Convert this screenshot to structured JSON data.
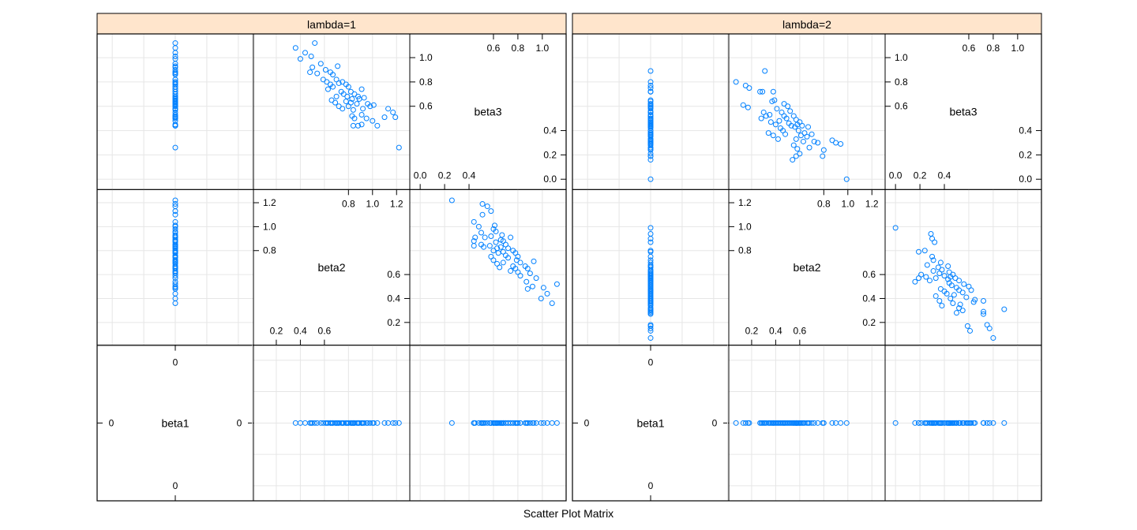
{
  "chart_data": {
    "type": "scatter",
    "title": "Scatter Plot Matrix",
    "variables": [
      "beta1",
      "beta2",
      "beta3"
    ],
    "grid": true,
    "point_color": "#0080ff",
    "strip_color": "#ffe5cc",
    "axes": {
      "beta1": {
        "range": [
          -1.24,
          1.24
        ],
        "tick_labels": [
          "0"
        ]
      },
      "beta2": {
        "range": [
          0.01,
          1.31
        ],
        "ticks_low": [
          "0.2",
          "0.4",
          "0.6"
        ],
        "ticks_high": [
          "0.8",
          "1.0",
          "1.2"
        ]
      },
      "beta3": {
        "range": [
          -0.085,
          1.195
        ],
        "ticks_low": [
          "0.0",
          "0.2",
          "0.4"
        ],
        "ticks_high": [
          "0.6",
          "0.8",
          "1.0"
        ]
      }
    },
    "panels": [
      {
        "strip": "lambda=1",
        "beta1": 0,
        "columns": [
          "beta2",
          "beta3"
        ],
        "points": [
          [
            0.36,
            1.08
          ],
          [
            0.44,
            1.04
          ],
          [
            0.4,
            0.99
          ],
          [
            0.52,
            1.12
          ],
          [
            0.49,
            1.01
          ],
          [
            0.57,
            0.95
          ],
          [
            0.48,
            0.88
          ],
          [
            0.54,
            0.87
          ],
          [
            0.5,
            0.92
          ],
          [
            0.61,
            0.9
          ],
          [
            0.65,
            0.88
          ],
          [
            0.67,
            0.86
          ],
          [
            0.71,
            0.93
          ],
          [
            0.59,
            0.82
          ],
          [
            0.62,
            0.8
          ],
          [
            0.65,
            0.78
          ],
          [
            0.63,
            0.74
          ],
          [
            0.67,
            0.76
          ],
          [
            0.7,
            0.82
          ],
          [
            0.72,
            0.79
          ],
          [
            0.75,
            0.8
          ],
          [
            0.78,
            0.78
          ],
          [
            0.8,
            0.76
          ],
          [
            0.74,
            0.72
          ],
          [
            0.76,
            0.7
          ],
          [
            0.79,
            0.68
          ],
          [
            0.83,
            0.66
          ],
          [
            0.85,
            0.7
          ],
          [
            0.82,
            0.63
          ],
          [
            0.87,
            0.62
          ],
          [
            0.7,
            0.68
          ],
          [
            0.66,
            0.65
          ],
          [
            0.69,
            0.63
          ],
          [
            0.72,
            0.6
          ],
          [
            0.75,
            0.58
          ],
          [
            0.8,
            0.6
          ],
          [
            0.84,
            0.57
          ],
          [
            0.88,
            0.68
          ],
          [
            0.91,
            0.74
          ],
          [
            0.89,
            0.66
          ],
          [
            0.93,
            0.67
          ],
          [
            0.96,
            0.62
          ],
          [
            0.98,
            0.6
          ],
          [
            1.01,
            0.61
          ],
          [
            0.92,
            0.58
          ],
          [
            0.83,
            0.52
          ],
          [
            0.85,
            0.5
          ],
          [
            0.91,
            0.53
          ],
          [
            0.95,
            0.5
          ],
          [
            0.84,
            0.44
          ],
          [
            0.88,
            0.44
          ],
          [
            0.91,
            0.45
          ],
          [
            1.0,
            0.48
          ],
          [
            1.04,
            0.44
          ],
          [
            1.1,
            0.51
          ],
          [
            1.13,
            0.58
          ],
          [
            1.17,
            0.55
          ],
          [
            1.19,
            0.51
          ],
          [
            0.78,
            0.64
          ],
          [
            0.82,
            0.72
          ],
          [
            1.22,
            0.26
          ]
        ]
      },
      {
        "strip": "lambda=2",
        "beta1": 0,
        "columns": [
          "beta2",
          "beta3"
        ],
        "points": [
          [
            0.07,
            0.8
          ],
          [
            0.15,
            0.77
          ],
          [
            0.18,
            0.75
          ],
          [
            0.13,
            0.61
          ],
          [
            0.17,
            0.59
          ],
          [
            0.31,
            0.89
          ],
          [
            0.27,
            0.72
          ],
          [
            0.29,
            0.72
          ],
          [
            0.38,
            0.72
          ],
          [
            0.3,
            0.55
          ],
          [
            0.32,
            0.52
          ],
          [
            0.28,
            0.5
          ],
          [
            0.35,
            0.53
          ],
          [
            0.37,
            0.64
          ],
          [
            0.39,
            0.65
          ],
          [
            0.41,
            0.58
          ],
          [
            0.36,
            0.47
          ],
          [
            0.4,
            0.45
          ],
          [
            0.43,
            0.48
          ],
          [
            0.45,
            0.55
          ],
          [
            0.47,
            0.52
          ],
          [
            0.49,
            0.5
          ],
          [
            0.51,
            0.46
          ],
          [
            0.44,
            0.42
          ],
          [
            0.46,
            0.4
          ],
          [
            0.48,
            0.37
          ],
          [
            0.34,
            0.38
          ],
          [
            0.38,
            0.36
          ],
          [
            0.42,
            0.33
          ],
          [
            0.52,
            0.56
          ],
          [
            0.55,
            0.52
          ],
          [
            0.57,
            0.49
          ],
          [
            0.53,
            0.44
          ],
          [
            0.56,
            0.43
          ],
          [
            0.58,
            0.45
          ],
          [
            0.6,
            0.47
          ],
          [
            0.62,
            0.44
          ],
          [
            0.59,
            0.4
          ],
          [
            0.61,
            0.36
          ],
          [
            0.64,
            0.38
          ],
          [
            0.66,
            0.35
          ],
          [
            0.63,
            0.31
          ],
          [
            0.57,
            0.33
          ],
          [
            0.55,
            0.28
          ],
          [
            0.58,
            0.25
          ],
          [
            0.54,
            0.16
          ],
          [
            0.57,
            0.19
          ],
          [
            0.6,
            0.21
          ],
          [
            0.67,
            0.43
          ],
          [
            0.7,
            0.37
          ],
          [
            0.72,
            0.31
          ],
          [
            0.68,
            0.26
          ],
          [
            0.75,
            0.3
          ],
          [
            0.8,
            0.24
          ],
          [
            0.79,
            0.19
          ],
          [
            0.87,
            0.32
          ],
          [
            0.9,
            0.3
          ],
          [
            0.94,
            0.29
          ],
          [
            0.5,
            0.6
          ],
          [
            0.47,
            0.62
          ],
          [
            0.99,
            0.0
          ]
        ]
      }
    ]
  }
}
